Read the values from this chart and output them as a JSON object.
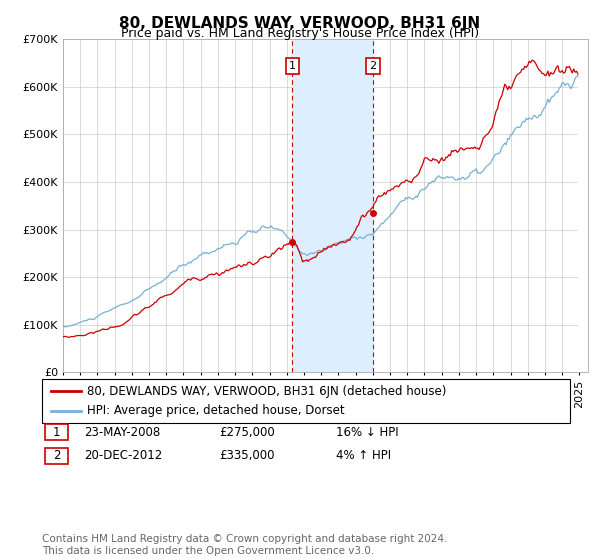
{
  "title": "80, DEWLANDS WAY, VERWOOD, BH31 6JN",
  "subtitle": "Price paid vs. HM Land Registry's House Price Index (HPI)",
  "ylim": [
    0,
    700000
  ],
  "xlim_left": 1995.0,
  "xlim_right": 2025.5,
  "shade_x1": 2008.33,
  "shade_x2": 2013.0,
  "hatch_x": 2024.92,
  "transaction1_x": 2008.33,
  "transaction1_y": 275000,
  "transaction2_x": 2013.0,
  "transaction2_y": 335000,
  "legend_entries": [
    "80, DEWLANDS WAY, VERWOOD, BH31 6JN (detached house)",
    "HPI: Average price, detached house, Dorset"
  ],
  "transaction_rows": [
    [
      "1",
      "23-MAY-2008",
      "£275,000",
      "16% ↓ HPI"
    ],
    [
      "2",
      "20-DEC-2012",
      "£335,000",
      "4% ↑ HPI"
    ]
  ],
  "footer": "Contains HM Land Registry data © Crown copyright and database right 2024.\nThis data is licensed under the Open Government Licence v3.0.",
  "red_color": "#cc0000",
  "blue_color": "#7ab0d4",
  "shade_color": "#ddeeff",
  "title_fontsize": 11,
  "subtitle_fontsize": 9,
  "axis_fontsize": 8,
  "legend_fontsize": 8.5,
  "table_fontsize": 8.5,
  "footer_fontsize": 7.5
}
